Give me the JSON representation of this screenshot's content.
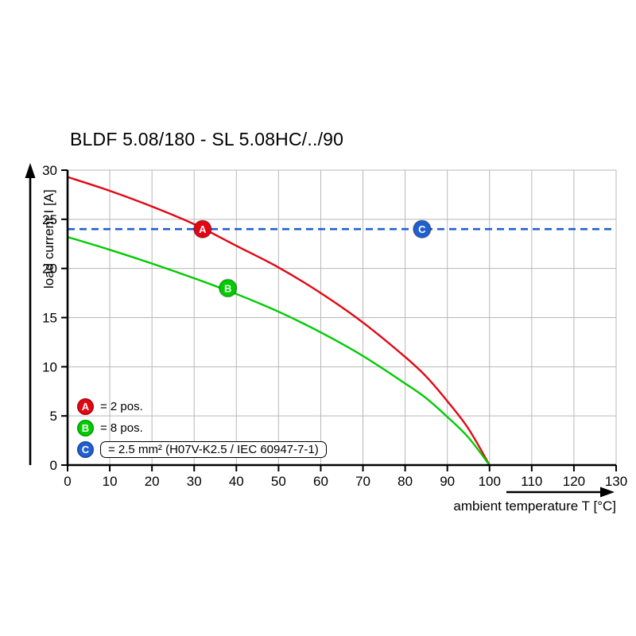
{
  "page": {
    "title": "BLDF 5.08/180 - SL 5.08HC/../90"
  },
  "axes": {
    "x_label": "ambient temperature T [°C]",
    "y_label": "load current I [A]"
  },
  "legend": {
    "items": [
      {
        "letter": "A",
        "color": "#e30613",
        "text": "= 2 pos.",
        "boxed": false
      },
      {
        "letter": "B",
        "color": "#00cc00",
        "text": "= 8 pos.",
        "boxed": false
      },
      {
        "letter": "C",
        "color": "#1f5fd0",
        "text": "= 2.5 mm² (H07V-K2.5 / IEC 60947-7-1)",
        "boxed": true
      }
    ]
  },
  "chart_data": {
    "type": "line",
    "title": "BLDF 5.08/180 - SL 5.08HC/../90",
    "xlabel": "ambient temperature T [°C]",
    "ylabel": "load current I [A]",
    "xlim": [
      0,
      130
    ],
    "ylim": [
      0,
      30
    ],
    "xtick_step": 10,
    "ytick_step": 5,
    "grid": true,
    "grid_color": "#b8b8b8",
    "series": [
      {
        "name": "A",
        "label": "2 pos.",
        "color": "#e30613",
        "points": [
          [
            0,
            29.3
          ],
          [
            10,
            27.9
          ],
          [
            20,
            26.3
          ],
          [
            30,
            24.5
          ],
          [
            40,
            22.3
          ],
          [
            50,
            20.1
          ],
          [
            60,
            17.5
          ],
          [
            70,
            14.5
          ],
          [
            80,
            11.0
          ],
          [
            85,
            9.0
          ],
          [
            90,
            6.5
          ],
          [
            95,
            3.7
          ],
          [
            100,
            0
          ]
        ]
      },
      {
        "name": "B",
        "label": "8 pos.",
        "color": "#00cc00",
        "points": [
          [
            0,
            23.2
          ],
          [
            10,
            21.9
          ],
          [
            20,
            20.5
          ],
          [
            30,
            19.0
          ],
          [
            40,
            17.4
          ],
          [
            50,
            15.6
          ],
          [
            60,
            13.5
          ],
          [
            70,
            11.1
          ],
          [
            80,
            8.3
          ],
          [
            85,
            6.8
          ],
          [
            90,
            4.9
          ],
          [
            95,
            2.8
          ],
          [
            100,
            0
          ]
        ]
      }
    ],
    "reference_line": {
      "name": "C",
      "y": 24,
      "color": "#1f5fd0",
      "style": "dashed",
      "label": "2.5 mm² (H07V-K2.5 / IEC 60947-7-1)"
    },
    "markers": [
      {
        "letter": "A",
        "x": 32,
        "y": 24,
        "color": "#e30613"
      },
      {
        "letter": "B",
        "x": 38,
        "y": 18,
        "color": "#00cc00"
      },
      {
        "letter": "C",
        "x": 84,
        "y": 24,
        "color": "#1f5fd0"
      }
    ]
  }
}
